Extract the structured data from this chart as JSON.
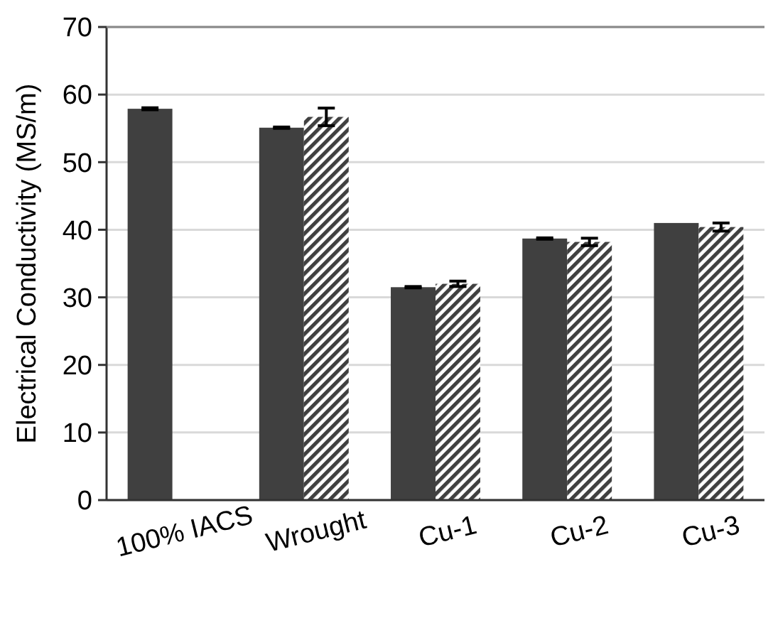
{
  "chart_data": {
    "type": "bar",
    "ylabel": "Electrical Conductivity (MS/m)",
    "categories": [
      "100% IACS",
      "Wrought",
      "Cu-1",
      "Cu-2",
      "Cu-3"
    ],
    "series": [
      {
        "color": "#404040",
        "values": [
          57.9,
          55.1,
          31.5,
          38.7,
          41.0
        ],
        "errors": [
          0.15,
          0.1,
          0.1,
          0.1,
          null
        ]
      },
      {
        "color": "#404040",
        "values": [
          null,
          56.7,
          32.0,
          38.2,
          40.4
        ],
        "errors": [
          null,
          1.3,
          0.4,
          0.55,
          0.6
        ]
      }
    ],
    "ylim": [
      0,
      70
    ],
    "yticks": [
      0,
      10,
      20,
      30,
      40,
      50,
      60,
      70
    ],
    "grid": "y"
  }
}
